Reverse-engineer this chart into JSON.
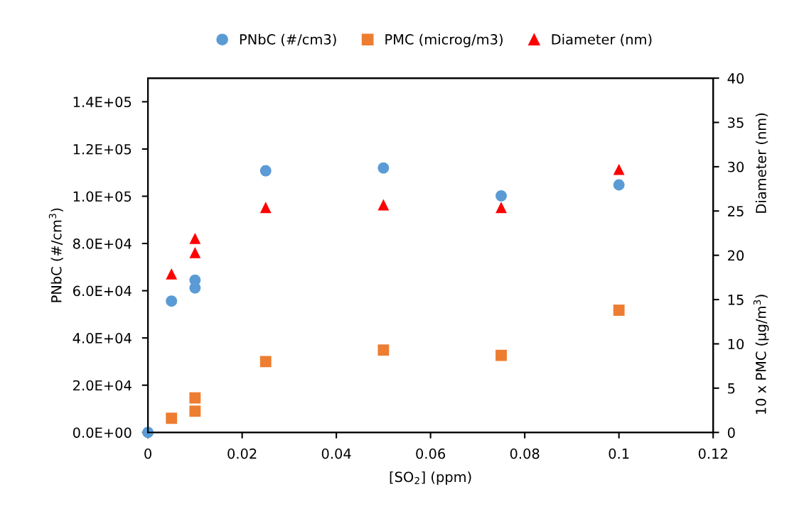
{
  "chart_data": {
    "type": "scatter",
    "xlabel": "[SO$_{2}$] (ppm)",
    "ylabel": "PNbC (#/cm$^{3}$)",
    "y2label": "Diameter (nm)",
    "annotations": [
      "10 x PMC (µg/m$^{3}$)"
    ],
    "xlim": [
      0,
      0.12
    ],
    "xticks": [
      0,
      0.02,
      0.04,
      0.06,
      0.08,
      0.1,
      0.12
    ],
    "ylim": [
      0,
      150000
    ],
    "yticks": [
      {
        "value": 0,
        "label": "0.0E+00"
      },
      {
        "value": 20000,
        "label": "2.0E+04"
      },
      {
        "value": 40000,
        "label": "4.0E+04"
      },
      {
        "value": 60000,
        "label": "6.0E+04"
      },
      {
        "value": 80000,
        "label": "8.0E+04"
      },
      {
        "value": 100000,
        "label": "1.0E+05"
      },
      {
        "value": 120000,
        "label": "1.2E+05"
      },
      {
        "value": 140000,
        "label": "1.4E+05"
      }
    ],
    "y2lim": [
      0,
      40
    ],
    "y2ticks": [
      0,
      5,
      10,
      15,
      20,
      25,
      30,
      35,
      40
    ],
    "grid": false,
    "legend": "top",
    "series": [
      {
        "name": "PNbC (#/cm3)",
        "color": "#5b9bd5",
        "marker": "circle",
        "x": [
          0,
          0.005,
          0.01,
          0.01,
          0.025,
          0.05,
          0.075,
          0.1
        ],
        "values": [
          0,
          55600,
          64500,
          61200,
          110800,
          112000,
          100200,
          104800
        ]
      },
      {
        "name": "PMC (microg/m3)",
        "color": "#ed7d31",
        "marker": "square",
        "axis": "y2",
        "x": [
          0.005,
          0.01,
          0.01,
          0.025,
          0.05,
          0.075,
          0.1
        ],
        "values": [
          1.6,
          3.9,
          2.4,
          8.0,
          9.3,
          8.7,
          13.8
        ]
      },
      {
        "name": "Diameter (nm)",
        "color": "#ff0000",
        "marker": "triangle",
        "axis": "y2",
        "x": [
          0.005,
          0.01,
          0.01,
          0.025,
          0.05,
          0.075,
          0.1
        ],
        "values": [
          17.9,
          21.9,
          20.3,
          25.4,
          25.7,
          25.4,
          29.7
        ]
      }
    ]
  }
}
